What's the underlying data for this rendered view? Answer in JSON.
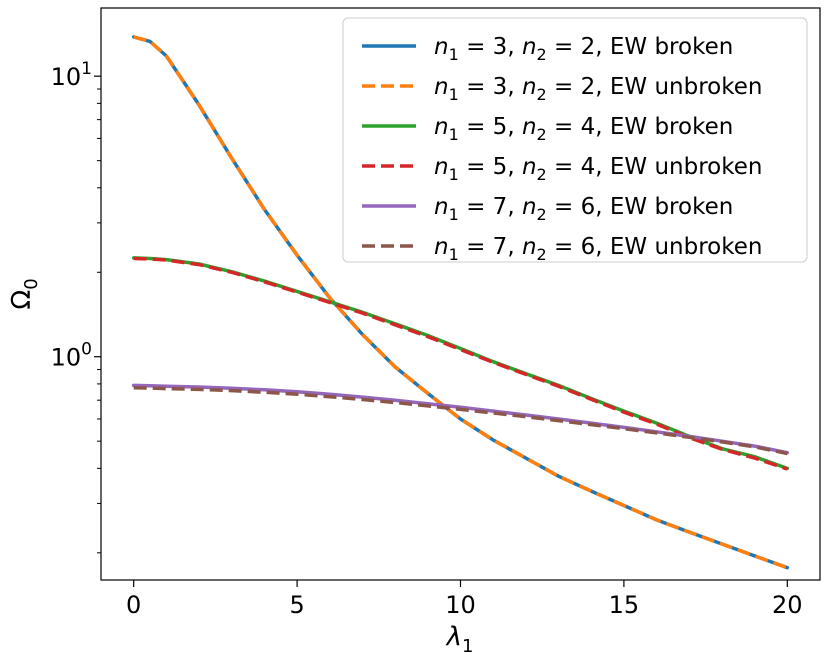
{
  "chart_data": {
    "type": "line",
    "xlabel_symbol": "λ",
    "xlabel_sub": "1",
    "ylabel_symbol": "Ω",
    "ylabel_sub": "0",
    "yscale": "log",
    "xlim": [
      -1,
      21
    ],
    "ylim": [
      0.16,
      17.5
    ],
    "x_ticks": [
      0,
      5,
      10,
      15,
      20
    ],
    "x_tick_labels": [
      "0",
      "5",
      "10",
      "15",
      "20"
    ],
    "y_ticks": [
      {
        "value": 1,
        "base": "10",
        "exp": "0"
      },
      {
        "value": 10,
        "base": "10",
        "exp": "1"
      }
    ],
    "grid": false,
    "legend_position": "top-right",
    "x": [
      0,
      0.5,
      1,
      2,
      3,
      4,
      5,
      6,
      7,
      8,
      9,
      10,
      11,
      12,
      13,
      14,
      15,
      16,
      17,
      18,
      19,
      20
    ],
    "series": [
      {
        "name_n1": "3",
        "name_n2": "2",
        "name_state": "EW broken",
        "color": "#1f77b4",
        "dash": "solid",
        "values": [
          13.8,
          13.3,
          11.8,
          7.9,
          5.1,
          3.35,
          2.3,
          1.62,
          1.2,
          0.92,
          0.74,
          0.6,
          0.505,
          0.435,
          0.375,
          0.332,
          0.295,
          0.262,
          0.237,
          0.215,
          0.195,
          0.177
        ]
      },
      {
        "name_n1": "3",
        "name_n2": "2",
        "name_state": "EW unbroken",
        "color": "#ff7f0e",
        "dash": "dashed",
        "values": [
          13.8,
          13.3,
          11.8,
          7.9,
          5.1,
          3.35,
          2.3,
          1.62,
          1.2,
          0.92,
          0.74,
          0.6,
          0.505,
          0.435,
          0.375,
          0.332,
          0.295,
          0.262,
          0.237,
          0.215,
          0.195,
          0.177
        ]
      },
      {
        "name_n1": "5",
        "name_n2": "4",
        "name_state": "EW broken",
        "color": "#2ca02c",
        "dash": "solid",
        "values": [
          2.25,
          2.24,
          2.22,
          2.14,
          2.01,
          1.86,
          1.71,
          1.57,
          1.44,
          1.31,
          1.19,
          1.07,
          0.96,
          0.87,
          0.79,
          0.71,
          0.64,
          0.58,
          0.52,
          0.47,
          0.44,
          0.4
        ]
      },
      {
        "name_n1": "5",
        "name_n2": "4",
        "name_state": "EW unbroken",
        "color": "#d62728",
        "dash": "dashed",
        "values": [
          2.24,
          2.23,
          2.21,
          2.13,
          2.0,
          1.85,
          1.7,
          1.56,
          1.43,
          1.3,
          1.18,
          1.06,
          0.955,
          0.865,
          0.785,
          0.705,
          0.635,
          0.575,
          0.515,
          0.468,
          0.435,
          0.398
        ]
      },
      {
        "name_n1": "7",
        "name_n2": "6",
        "name_state": "EW broken",
        "color": "#9467bd",
        "dash": "solid",
        "values": [
          0.79,
          0.788,
          0.785,
          0.78,
          0.772,
          0.762,
          0.75,
          0.735,
          0.718,
          0.7,
          0.68,
          0.66,
          0.64,
          0.62,
          0.6,
          0.58,
          0.56,
          0.54,
          0.52,
          0.5,
          0.48,
          0.455
        ]
      },
      {
        "name_n1": "7",
        "name_n2": "6",
        "name_state": "EW unbroken",
        "color": "#8c564b",
        "dash": "dashed",
        "values": [
          0.775,
          0.773,
          0.77,
          0.765,
          0.757,
          0.747,
          0.735,
          0.72,
          0.704,
          0.687,
          0.668,
          0.649,
          0.63,
          0.611,
          0.592,
          0.573,
          0.554,
          0.535,
          0.516,
          0.497,
          0.477,
          0.452
        ]
      }
    ]
  }
}
